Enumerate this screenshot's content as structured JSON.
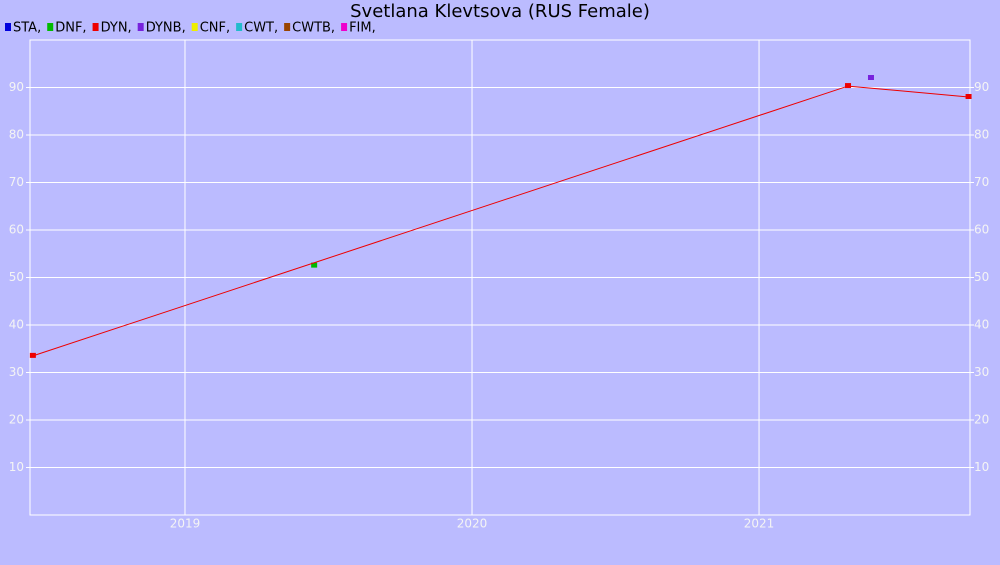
{
  "chart_data": {
    "type": "line",
    "title": "Svetlana Klevtsova (RUS Female)",
    "series": [
      {
        "name": "STA,",
        "color": "#0000dd",
        "x": [],
        "values": []
      },
      {
        "name": "DNF,",
        "color": "#00bb00",
        "x": [
          2019.45
        ],
        "values": [
          52.5
        ]
      },
      {
        "name": "DYN,",
        "color": "#ee0000",
        "x": [
          2018.47,
          2021.31,
          2021.73
        ],
        "values": [
          33.5,
          90.3,
          88
        ]
      },
      {
        "name": "DYNB,",
        "color": "#7722dd",
        "x": [
          2021.39
        ],
        "values": [
          92
        ]
      },
      {
        "name": "CNF,",
        "color": "#eeee00",
        "x": [],
        "values": []
      },
      {
        "name": "CWT,",
        "color": "#22bbcc",
        "x": [],
        "values": []
      },
      {
        "name": "CWTB,",
        "color": "#994400",
        "x": [],
        "values": []
      },
      {
        "name": "FIM,",
        "color": "#ee00cc",
        "x": [],
        "values": []
      }
    ],
    "xlim": [
      2018.46,
      2021.735
    ],
    "xticks": [
      2019,
      2020,
      2021
    ],
    "ylim": [
      0,
      100
    ],
    "yticks": [
      10,
      20,
      30,
      40,
      50,
      60,
      70,
      80,
      90
    ],
    "grid": true
  }
}
